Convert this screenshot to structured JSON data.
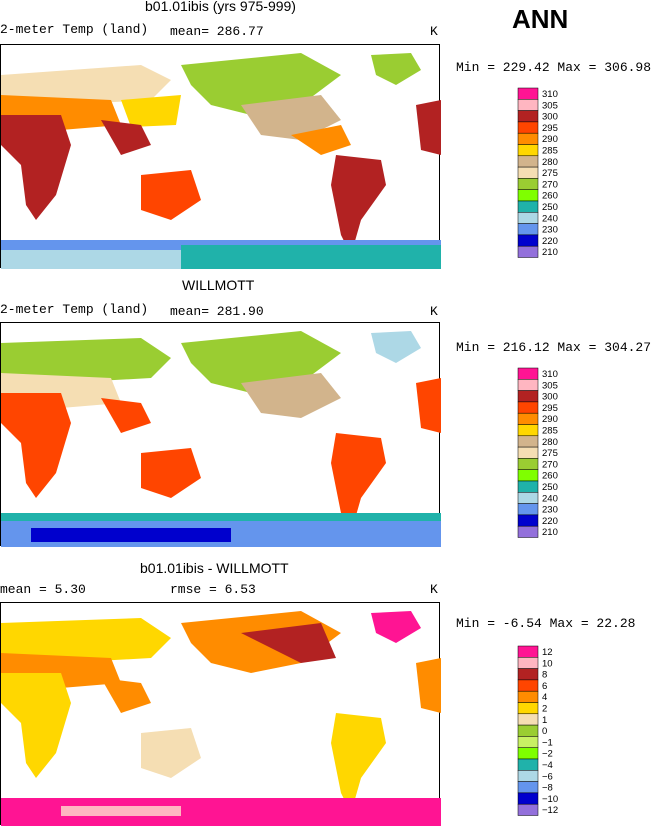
{
  "season": "ANN",
  "panels": [
    {
      "title": "b01.01ibis (yrs 975-999)",
      "left_label": "2-meter Temp (land)",
      "stat1": "mean= 286.77",
      "stat2": "",
      "units": "K",
      "minmax": "Min = 229.42 Max = 306.98",
      "legend": {
        "labels": [
          "310",
          "305",
          "300",
          "295",
          "290",
          "285",
          "280",
          "275",
          "270",
          "260",
          "250",
          "240",
          "230",
          "220",
          "210"
        ],
        "colors": [
          "#ff1493",
          "#ffb6c1",
          "#b22222",
          "#ff4500",
          "#ff8c00",
          "#ffd700",
          "#d2b48c",
          "#f5deb3",
          "#9acd32",
          "#7fff00",
          "#20b2aa",
          "#add8e6",
          "#6495ed",
          "#0000cd",
          "#9370db"
        ]
      }
    },
    {
      "title": "WILLMOTT",
      "left_label": "2-meter Temp (land)",
      "stat1": "mean= 281.90",
      "stat2": "",
      "units": "K",
      "minmax": "Min = 216.12 Max = 304.27",
      "legend": {
        "labels": [
          "310",
          "305",
          "300",
          "295",
          "290",
          "285",
          "280",
          "275",
          "270",
          "260",
          "250",
          "240",
          "230",
          "220",
          "210"
        ],
        "colors": [
          "#ff1493",
          "#ffb6c1",
          "#b22222",
          "#ff4500",
          "#ff8c00",
          "#ffd700",
          "#d2b48c",
          "#f5deb3",
          "#9acd32",
          "#7fff00",
          "#20b2aa",
          "#add8e6",
          "#6495ed",
          "#0000cd",
          "#9370db"
        ]
      }
    },
    {
      "title": "b01.01ibis - WILLMOTT",
      "left_label": "mean =    5.30",
      "stat1": "rmse =    6.53",
      "stat2": "",
      "units": "K",
      "minmax": "Min =   -6.54 Max =   22.28",
      "legend": {
        "labels": [
          "12",
          "10",
          "8",
          "6",
          "4",
          "2",
          "1",
          "0",
          "−1",
          "−2",
          "−4",
          "−6",
          "−8",
          "−10",
          "−12"
        ],
        "colors": [
          "#ff1493",
          "#ffb6c1",
          "#b22222",
          "#ff4500",
          "#ff8c00",
          "#ffd700",
          "#f5deb3",
          "#9acd32",
          "#c8f064",
          "#7fff00",
          "#20b2aa",
          "#add8e6",
          "#6495ed",
          "#0000cd",
          "#9370db"
        ]
      }
    }
  ]
}
